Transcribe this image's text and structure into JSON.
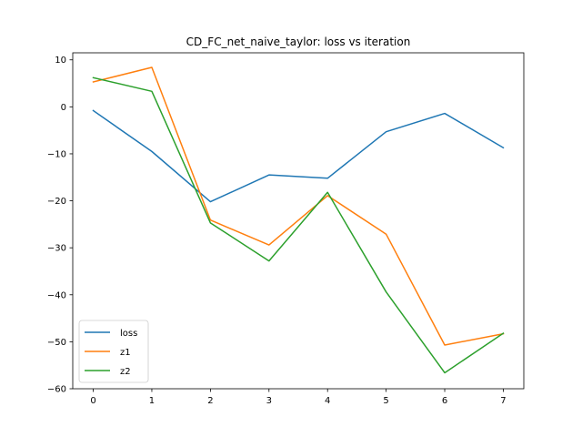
{
  "chart_data": {
    "type": "line",
    "title": "CD_FC_net_naive_taylor: loss vs iteration",
    "xlabel": "",
    "ylabel": "",
    "x": [
      0,
      1,
      2,
      3,
      4,
      5,
      6,
      7
    ],
    "xlim": [
      -0.35,
      7.35
    ],
    "ylim": [
      -60,
      11.5
    ],
    "xticks": [
      0,
      1,
      2,
      3,
      4,
      5,
      6,
      7
    ],
    "yticks": [
      10,
      0,
      -10,
      -20,
      -30,
      -40,
      -50,
      -60
    ],
    "ytick_labels": [
      "10",
      "0",
      "−10",
      "−20",
      "−30",
      "−40",
      "−50",
      "−60"
    ],
    "grid": false,
    "legend_position": "lower-left",
    "series": [
      {
        "name": "loss",
        "color": "#1f77b4",
        "values": [
          -0.8,
          -9.5,
          -20.2,
          -14.5,
          -15.2,
          -5.3,
          -1.4,
          -8.7
        ]
      },
      {
        "name": "z1",
        "color": "#ff7f0e",
        "values": [
          5.3,
          8.4,
          -24.1,
          -29.4,
          -18.9,
          -27.1,
          -50.7,
          -48.3
        ]
      },
      {
        "name": "z2",
        "color": "#2ca02c",
        "values": [
          6.2,
          3.3,
          -24.7,
          -32.8,
          -18.2,
          -39.4,
          -56.6,
          -48.2
        ]
      }
    ]
  }
}
